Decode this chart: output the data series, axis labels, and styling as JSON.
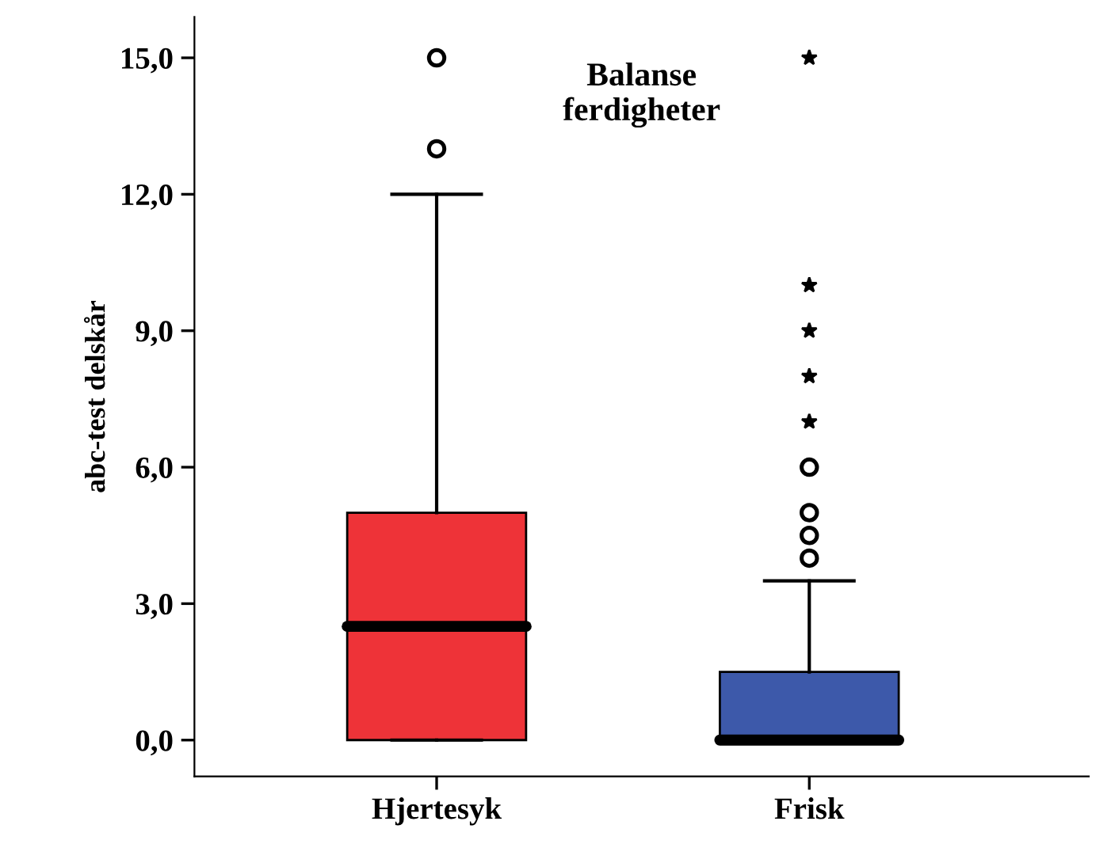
{
  "chart_data": {
    "type": "box",
    "title": "Balanse\nferdigheter",
    "ylabel": "abc-test delskår",
    "categories": [
      "Hjertesyk",
      "Frisk"
    ],
    "colors": [
      "#ee3338",
      "#3d59aa"
    ],
    "boxes": [
      {
        "low": 0,
        "q1": 0,
        "median": 2.5,
        "q3": 5,
        "high": 12,
        "outliers": [
          13,
          15
        ]
      },
      {
        "low": 0,
        "q1": 0,
        "median": 0,
        "q3": 1.5,
        "high": 3.5,
        "outliers": [
          4,
          4.5,
          5,
          6,
          7,
          8,
          9,
          10,
          15
        ]
      }
    ],
    "ylim": [
      -0.8,
      15.9
    ],
    "yticks": [
      {
        "value": 0,
        "label": "0,0"
      },
      {
        "value": 3,
        "label": "3,0"
      },
      {
        "value": 6,
        "label": "6,0"
      },
      {
        "value": 9,
        "label": "9,0"
      },
      {
        "value": 12,
        "label": "12,0"
      },
      {
        "value": 15,
        "label": "15,0"
      }
    ],
    "grid": false,
    "legend": false
  }
}
